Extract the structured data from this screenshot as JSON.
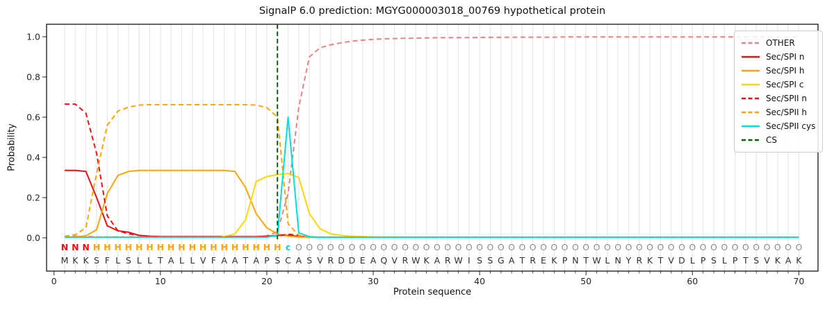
{
  "window": {
    "title": "SignalP 6.0 prediction plot"
  },
  "chart_data": {
    "type": "line",
    "title": "SignalP 6.0 prediction: MGYG000003018_00769 hypothetical protein",
    "xlabel": "Protein sequence",
    "ylabel": "Probability",
    "xlim": [
      -0.7,
      71.8
    ],
    "ylim": [
      -0.17,
      1.06
    ],
    "xticks": [
      0,
      10,
      20,
      30,
      40,
      50,
      60,
      70
    ],
    "yticks": [
      0.0,
      0.2,
      0.4,
      0.6,
      0.8,
      1.0
    ],
    "grid": "vertical gridline at every residue position 1-70",
    "legend_position": "upper right",
    "x_positions_start": 1,
    "sequence": "MKKSFLSLLTALLVFAATAPSCASVRDDEAQVRWKARWISSGATREKPNTWLNYRKTVDLPSLPTSVKAK",
    "annotation": "NNNHHHHHHHHHHHHHHHHHHcOOOOOOOOOOOOOOOOOOOOOOOOOOOOOOOOOOOOOOOOOOOOOOOO",
    "annotation_colors": {
      "N": "#ee1111",
      "H": "#ffa500",
      "c": "#00d6d6",
      "O": "#8c8c8c"
    },
    "residue_color": "#303030",
    "grid_color": "#e8e8e8",
    "tick_label_color": "#262626",
    "series": [
      {
        "name": "OTHER",
        "color": "#f08080",
        "dash": true,
        "values": [
          0.008,
          0.008,
          0.007,
          0.005,
          0.004,
          0.004,
          0.004,
          0.004,
          0.004,
          0.004,
          0.004,
          0.004,
          0.004,
          0.004,
          0.004,
          0.004,
          0.004,
          0.004,
          0.004,
          0.01,
          0.03,
          0.22,
          0.65,
          0.9,
          0.945,
          0.96,
          0.97,
          0.978,
          0.983,
          0.987,
          0.99,
          0.991,
          0.992,
          0.993,
          0.994,
          0.995,
          0.995,
          0.996,
          0.996,
          0.997,
          0.997,
          0.997,
          0.998,
          0.998,
          0.998,
          0.998,
          0.998,
          0.999,
          0.999,
          0.999,
          0.999,
          0.999,
          0.999,
          0.999,
          0.999,
          0.999,
          0.999,
          0.999,
          0.999,
          0.999,
          0.999,
          0.999,
          0.999,
          0.999,
          0.999,
          0.999,
          0.999,
          0.999,
          0.999,
          0.999
        ]
      },
      {
        "name": "Sec/SPI n",
        "color": "#ee1111",
        "dash": false,
        "values": [
          0.335,
          0.335,
          0.33,
          0.2,
          0.06,
          0.035,
          0.028,
          0.012,
          0.008,
          0.006,
          0.006,
          0.006,
          0.006,
          0.006,
          0.006,
          0.006,
          0.006,
          0.006,
          0.006,
          0.008,
          0.012,
          0.012,
          0.008,
          0.004,
          0.002,
          0.002,
          0.002,
          0.002,
          0.002,
          0.002,
          0.002,
          0.002,
          0.002,
          0.002,
          0.002,
          0.002,
          0.002,
          0.002,
          0.002,
          0.002,
          0.002,
          0.002,
          0.002,
          0.002,
          0.002,
          0.002,
          0.002,
          0.002,
          0.002,
          0.002,
          0.002,
          0.002,
          0.002,
          0.002,
          0.002,
          0.002,
          0.002,
          0.002,
          0.002,
          0.002,
          0.002,
          0.002,
          0.002,
          0.002,
          0.002,
          0.002,
          0.002,
          0.002,
          0.002,
          0.002
        ]
      },
      {
        "name": "Sec/SPI h",
        "color": "#ffa500",
        "dash": false,
        "values": [
          0.004,
          0.004,
          0.01,
          0.04,
          0.22,
          0.31,
          0.33,
          0.335,
          0.335,
          0.335,
          0.335,
          0.335,
          0.335,
          0.335,
          0.335,
          0.335,
          0.33,
          0.25,
          0.12,
          0.05,
          0.02,
          0.008,
          0.004,
          0.002,
          0.002,
          0.002,
          0.002,
          0.002,
          0.002,
          0.002,
          0.002,
          0.002,
          0.002,
          0.002,
          0.002,
          0.002,
          0.002,
          0.002,
          0.002,
          0.002,
          0.002,
          0.002,
          0.002,
          0.002,
          0.002,
          0.002,
          0.002,
          0.002,
          0.002,
          0.002,
          0.002,
          0.002,
          0.002,
          0.002,
          0.002,
          0.002,
          0.002,
          0.002,
          0.002,
          0.002,
          0.002,
          0.002,
          0.002,
          0.002,
          0.002,
          0.002,
          0.002,
          0.002,
          0.002,
          0.002
        ]
      },
      {
        "name": "Sec/SPI c",
        "color": "#ffd700",
        "dash": false,
        "values": [
          0.003,
          0.003,
          0.003,
          0.003,
          0.003,
          0.003,
          0.003,
          0.003,
          0.003,
          0.003,
          0.003,
          0.003,
          0.003,
          0.003,
          0.003,
          0.006,
          0.02,
          0.09,
          0.28,
          0.305,
          0.315,
          0.32,
          0.3,
          0.12,
          0.045,
          0.02,
          0.012,
          0.008,
          0.006,
          0.005,
          0.004,
          0.004,
          0.003,
          0.003,
          0.002,
          0.002,
          0.002,
          0.002,
          0.002,
          0.002,
          0.002,
          0.002,
          0.002,
          0.002,
          0.002,
          0.002,
          0.002,
          0.002,
          0.002,
          0.002,
          0.002,
          0.002,
          0.002,
          0.002,
          0.002,
          0.002,
          0.002,
          0.002,
          0.002,
          0.002,
          0.002,
          0.002,
          0.002,
          0.002,
          0.002,
          0.002,
          0.002,
          0.002,
          0.002,
          0.002
        ]
      },
      {
        "name": "Sec/SPII n",
        "color": "#ee1111",
        "dash": true,
        "values": [
          0.665,
          0.665,
          0.62,
          0.42,
          0.11,
          0.035,
          0.02,
          0.012,
          0.008,
          0.005,
          0.005,
          0.005,
          0.005,
          0.005,
          0.005,
          0.005,
          0.005,
          0.005,
          0.005,
          0.006,
          0.01,
          0.018,
          0.012,
          0.005,
          0.002,
          0.002,
          0.002,
          0.002,
          0.002,
          0.002,
          0.002,
          0.002,
          0.002,
          0.002,
          0.002,
          0.002,
          0.002,
          0.002,
          0.002,
          0.002,
          0.002,
          0.002,
          0.002,
          0.002,
          0.002,
          0.002,
          0.002,
          0.002,
          0.002,
          0.002,
          0.002,
          0.002,
          0.002,
          0.002,
          0.002,
          0.002,
          0.002,
          0.002,
          0.002,
          0.002,
          0.002,
          0.002,
          0.002,
          0.002,
          0.002,
          0.002,
          0.002,
          0.002,
          0.002,
          0.002
        ]
      },
      {
        "name": "Sec/SPII h",
        "color": "#ffa500",
        "dash": true,
        "values": [
          0.008,
          0.015,
          0.05,
          0.32,
          0.56,
          0.63,
          0.65,
          0.66,
          0.662,
          0.662,
          0.662,
          0.662,
          0.662,
          0.662,
          0.662,
          0.662,
          0.662,
          0.662,
          0.66,
          0.648,
          0.6,
          0.07,
          0.012,
          0.004,
          0.002,
          0.002,
          0.002,
          0.002,
          0.002,
          0.002,
          0.002,
          0.002,
          0.002,
          0.002,
          0.002,
          0.002,
          0.002,
          0.002,
          0.002,
          0.002,
          0.002,
          0.002,
          0.002,
          0.002,
          0.002,
          0.002,
          0.002,
          0.002,
          0.002,
          0.002,
          0.002,
          0.002,
          0.002,
          0.002,
          0.002,
          0.002,
          0.002,
          0.002,
          0.002,
          0.002,
          0.002,
          0.002,
          0.002,
          0.002,
          0.002,
          0.002,
          0.002,
          0.002,
          0.002,
          0.002
        ]
      },
      {
        "name": "Sec/SPII cys",
        "color": "#00dede",
        "dash": false,
        "values": [
          0.003,
          0.003,
          0.003,
          0.003,
          0.003,
          0.003,
          0.003,
          0.003,
          0.003,
          0.003,
          0.003,
          0.003,
          0.003,
          0.003,
          0.003,
          0.003,
          0.003,
          0.003,
          0.003,
          0.003,
          0.012,
          0.6,
          0.025,
          0.006,
          0.003,
          0.003,
          0.003,
          0.003,
          0.003,
          0.003,
          0.003,
          0.003,
          0.003,
          0.003,
          0.003,
          0.003,
          0.003,
          0.003,
          0.003,
          0.003,
          0.003,
          0.003,
          0.003,
          0.003,
          0.003,
          0.003,
          0.003,
          0.003,
          0.003,
          0.003,
          0.003,
          0.003,
          0.003,
          0.003,
          0.003,
          0.003,
          0.003,
          0.003,
          0.003,
          0.003,
          0.003,
          0.003,
          0.003,
          0.003,
          0.003,
          0.003,
          0.003,
          0.003,
          0.003,
          0.003
        ]
      }
    ],
    "cs_marker": {
      "name": "CS",
      "x": 21,
      "color": "#006400",
      "dash": true
    }
  }
}
